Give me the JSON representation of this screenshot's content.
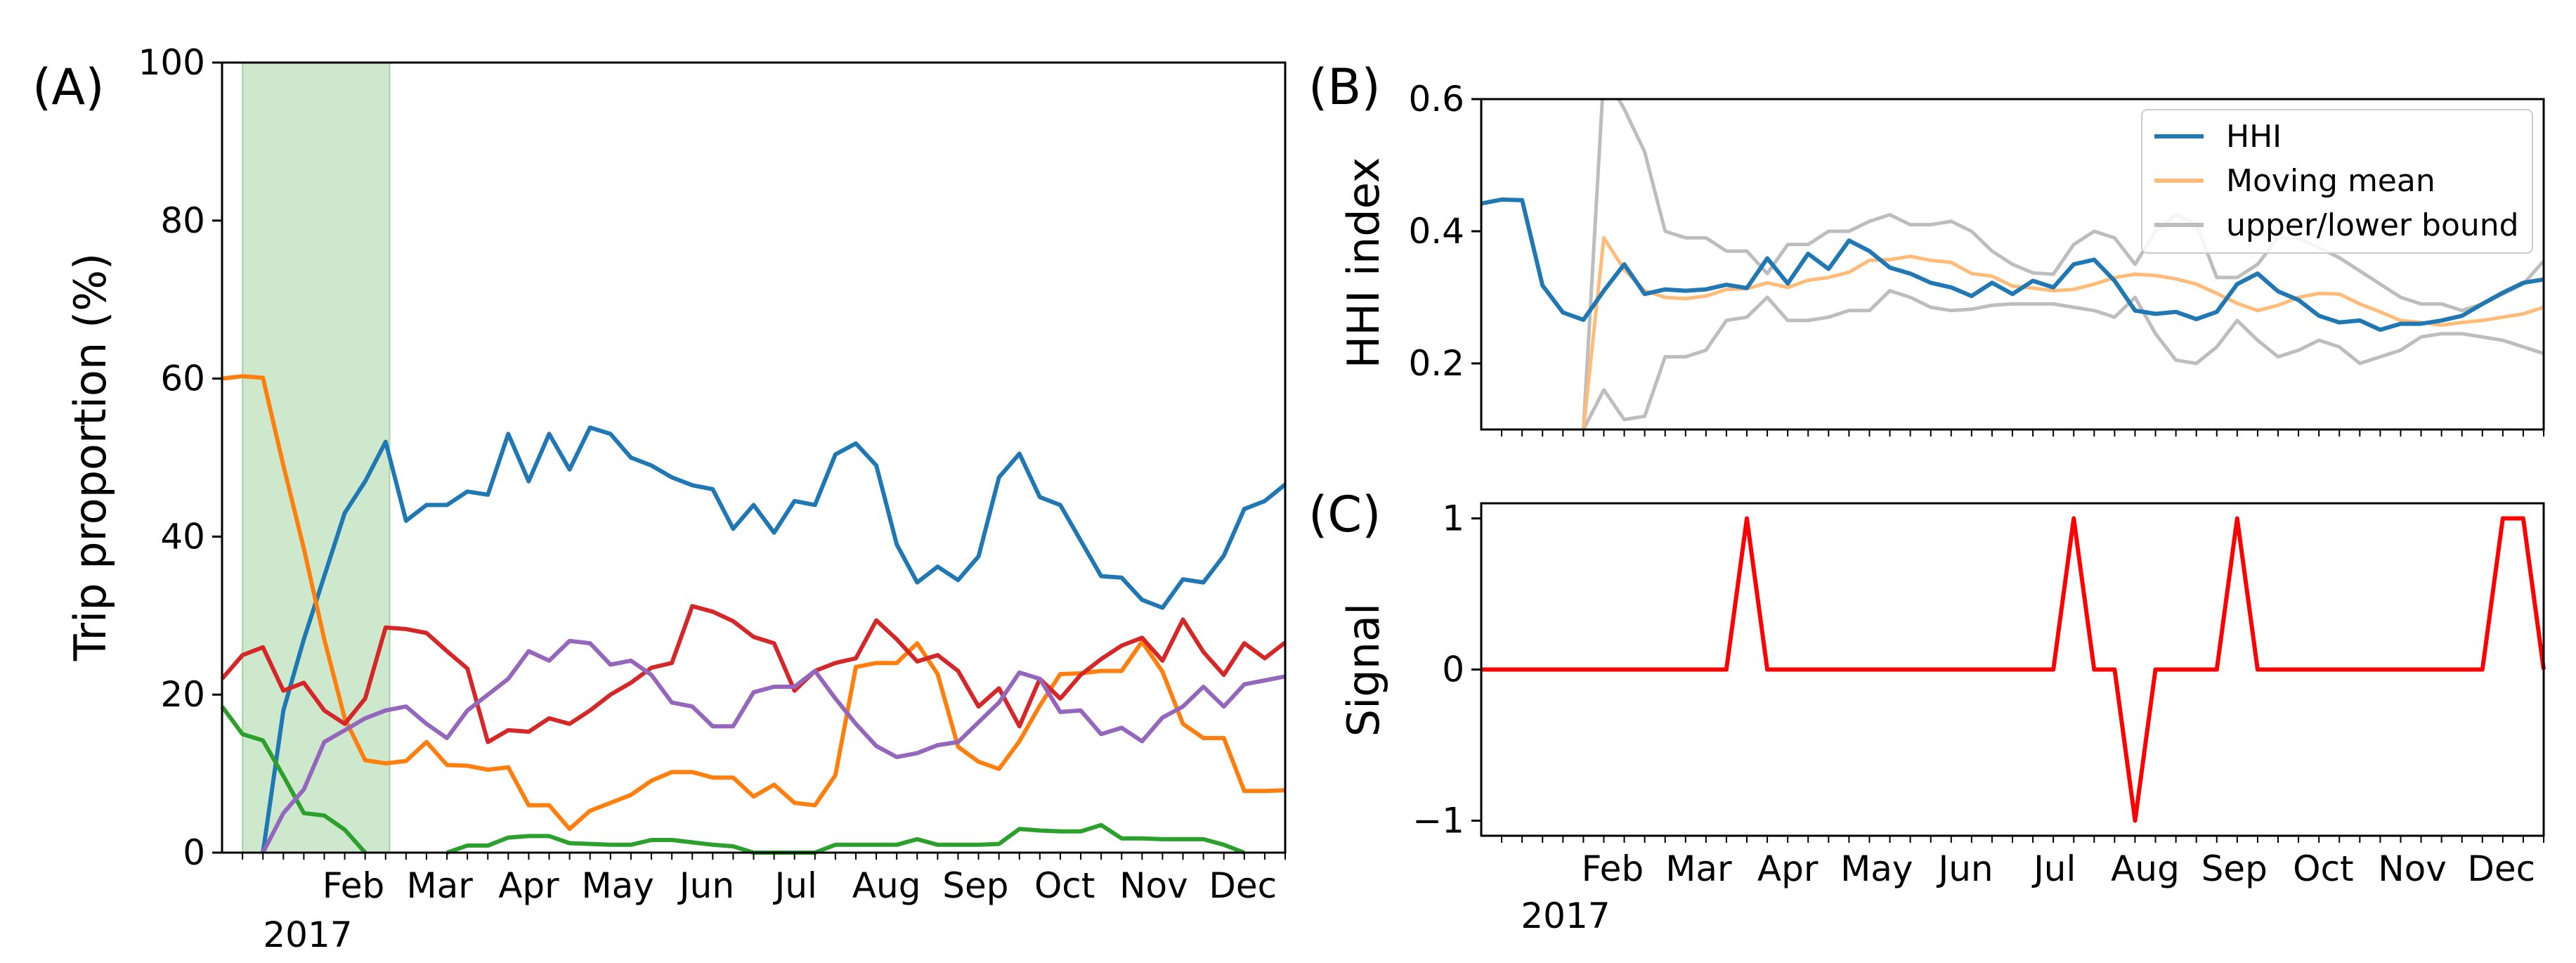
{
  "colors": {
    "blue": "#1f77b4",
    "orange": "#ff7f0e",
    "green": "#2ca02c",
    "red": "#d62728",
    "purple": "#9467bd",
    "moving_mean": "#ffbb78",
    "bounds": "#bdbdbd",
    "signal": "#ff0000",
    "highlight": "#2ca02c"
  },
  "month_labels": [
    "Feb",
    "Mar",
    "Apr",
    "May",
    "Jun",
    "Jul",
    "Aug",
    "Sep",
    "Oct",
    "Nov",
    "Dec"
  ],
  "year_label": "2017",
  "chart_data": [
    {
      "panel": "(A)",
      "type": "line",
      "ylabel": "Trip proportion (%)",
      "ylim": [
        0,
        100
      ],
      "yticks": [
        "0",
        "20",
        "40",
        "60",
        "80",
        "100"
      ],
      "x_axis": "weekly, 2017 (week index 0-52)",
      "xlim": [
        0,
        52
      ],
      "shaded_region_weeks": [
        1,
        8.2
      ],
      "series": [
        {
          "color": "blue",
          "values": [
            null,
            null,
            0,
            18,
            27,
            35,
            43,
            47,
            52,
            42,
            44,
            44,
            45.7,
            45.3,
            53,
            47,
            53,
            48.5,
            53.8,
            53,
            50,
            49,
            47.5,
            46.5,
            46,
            41,
            44,
            40.5,
            44.5,
            44,
            50.4,
            51.8,
            49,
            39,
            34.2,
            36.2,
            34.5,
            37.5,
            47.5,
            50.5,
            45,
            44,
            39.5,
            35,
            34.8,
            32,
            31,
            34.6,
            34.2,
            37.6,
            43.5,
            44.5,
            46.6
          ]
        },
        {
          "color": "orange",
          "values": [
            60,
            60.3,
            60.1,
            49,
            38.5,
            27,
            17,
            11.7,
            11.3,
            11.6,
            14,
            11.1,
            11,
            10.5,
            10.8,
            6,
            6,
            3,
            5.3,
            6.3,
            7.3,
            9.1,
            10.2,
            10.2,
            9.5,
            9.5,
            7.1,
            8.6,
            6.3,
            6,
            9.8,
            23.5,
            24,
            24,
            26.5,
            22.6,
            13.4,
            11.5,
            10.6,
            14.1,
            18.6,
            22.6,
            22.7,
            23,
            23,
            26.7,
            22.9,
            16.3,
            14.5,
            14.5,
            7.8,
            7.8,
            7.9
          ]
        },
        {
          "color": "green",
          "values": [
            18.5,
            15,
            14.2,
            9.7,
            5,
            4.7,
            2.9,
            0,
            null,
            null,
            null,
            0,
            0.9,
            0.9,
            1.9,
            2.1,
            2.1,
            1.2,
            1.1,
            1,
            1,
            1.6,
            1.6,
            1.3,
            1,
            0.8,
            0,
            0,
            0,
            0,
            1,
            1,
            1,
            1,
            1.7,
            1,
            1,
            1,
            1.1,
            3,
            2.8,
            2.7,
            2.7,
            3.5,
            1.8,
            1.8,
            1.7,
            1.7,
            1.7,
            1,
            0,
            null,
            null
          ]
        },
        {
          "color": "red",
          "values": [
            22,
            25,
            26,
            20.5,
            21.5,
            18,
            16.3,
            19.5,
            28.5,
            28.3,
            27.8,
            25.5,
            23.3,
            14,
            15.5,
            15.3,
            17,
            16.3,
            18,
            20,
            21.5,
            23.4,
            24,
            31.2,
            30.5,
            29.3,
            27.3,
            26.5,
            20.5,
            23,
            24,
            24.6,
            29.4,
            27,
            24.2,
            25,
            23,
            18.5,
            20.8,
            16,
            22,
            19.5,
            22.5,
            24.5,
            26.2,
            27.2,
            24.3,
            29.5,
            25.4,
            22.5,
            26.5,
            24.6,
            26.6
          ]
        },
        {
          "color": "purple",
          "values": [
            null,
            null,
            0,
            5,
            8,
            14,
            15.5,
            17,
            18,
            18.5,
            16.3,
            14.5,
            18,
            20,
            22,
            25.5,
            24.3,
            26.8,
            26.5,
            23.8,
            24.3,
            22.5,
            19,
            18.5,
            16,
            16,
            20.3,
            21,
            21,
            23,
            19.5,
            16.3,
            13.5,
            12.1,
            12.6,
            13.6,
            14,
            16.5,
            19,
            22.8,
            22,
            17.8,
            18,
            15,
            15.8,
            14.1,
            17.1,
            18.5,
            21,
            18.5,
            21.3,
            21.8,
            22.3
          ]
        }
      ]
    },
    {
      "panel": "(B)",
      "type": "line",
      "ylabel": "HHI index",
      "ylim": [
        0.1,
        0.6
      ],
      "yticks": [
        "0.2",
        "0.4",
        "0.6"
      ],
      "xlim": [
        0,
        52
      ],
      "legend_position": "top-right",
      "legend": [
        "HHI",
        "Moving mean",
        "upper/lower bound"
      ],
      "series": [
        {
          "name": "HHI",
          "color": "blue",
          "values": [
            0.442,
            0.448,
            0.447,
            0.318,
            0.277,
            0.266,
            0.31,
            0.35,
            0.305,
            0.312,
            0.31,
            0.312,
            0.319,
            0.314,
            0.359,
            0.321,
            0.366,
            0.343,
            0.386,
            0.37,
            0.345,
            0.336,
            0.322,
            0.315,
            0.302,
            0.322,
            0.305,
            0.325,
            0.315,
            0.35,
            0.357,
            0.325,
            0.28,
            0.275,
            0.278,
            0.267,
            0.278,
            0.32,
            0.336,
            0.309,
            0.296,
            0.272,
            0.262,
            0.265,
            0.251,
            0.26,
            0.26,
            0.265,
            0.272,
            0.29,
            0.307,
            0.322,
            0.327
          ]
        },
        {
          "name": "Moving mean",
          "color": "moving_mean",
          "values": [
            null,
            null,
            null,
            null,
            null,
            0.1,
            0.39,
            0.342,
            0.31,
            0.3,
            0.298,
            0.302,
            0.312,
            0.313,
            0.322,
            0.315,
            0.326,
            0.33,
            0.338,
            0.356,
            0.357,
            0.362,
            0.356,
            0.353,
            0.336,
            0.332,
            0.317,
            0.314,
            0.31,
            0.312,
            0.32,
            0.33,
            0.335,
            0.333,
            0.328,
            0.32,
            0.306,
            0.291,
            0.28,
            0.288,
            0.3,
            0.306,
            0.305,
            0.29,
            0.278,
            0.265,
            0.262,
            0.258,
            0.262,
            0.265,
            0.27,
            0.275,
            0.285
          ]
        },
        {
          "name": "upper bound",
          "color": "bounds",
          "values": [
            null,
            null,
            null,
            null,
            null,
            0.1,
            0.64,
            0.585,
            0.52,
            0.4,
            0.39,
            0.39,
            0.37,
            0.37,
            0.336,
            0.38,
            0.38,
            0.4,
            0.4,
            0.415,
            0.425,
            0.41,
            0.41,
            0.415,
            0.4,
            0.37,
            0.35,
            0.337,
            0.335,
            0.38,
            0.4,
            0.39,
            0.35,
            0.4,
            0.425,
            0.41,
            0.33,
            0.33,
            0.35,
            0.39,
            0.39,
            0.375,
            0.36,
            0.34,
            0.32,
            0.3,
            0.29,
            0.29,
            0.28,
            0.29,
            0.305,
            0.32,
            0.355
          ]
        },
        {
          "name": "lower bound",
          "color": "bounds",
          "values": [
            null,
            null,
            null,
            null,
            null,
            0.1,
            0.16,
            0.115,
            0.12,
            0.21,
            0.21,
            0.22,
            0.265,
            0.27,
            0.3,
            0.265,
            0.265,
            0.27,
            0.28,
            0.28,
            0.31,
            0.3,
            0.285,
            0.28,
            0.282,
            0.288,
            0.29,
            0.29,
            0.29,
            0.285,
            0.28,
            0.27,
            0.3,
            0.245,
            0.205,
            0.2,
            0.225,
            0.265,
            0.235,
            0.21,
            0.22,
            0.235,
            0.225,
            0.2,
            0.21,
            0.22,
            0.24,
            0.245,
            0.245,
            0.24,
            0.235,
            0.225,
            0.215
          ]
        }
      ]
    },
    {
      "panel": "(C)",
      "type": "line",
      "ylabel": "Signal",
      "ylim": [
        -1.1,
        1.1
      ],
      "yticks": [
        "−1",
        "0",
        "1"
      ],
      "xlim": [
        0,
        52
      ],
      "series": [
        {
          "color": "signal",
          "values": [
            0,
            0,
            0,
            0,
            0,
            0,
            0,
            0,
            0,
            0,
            0,
            0,
            0,
            1,
            0,
            0,
            0,
            0,
            0,
            0,
            0,
            0,
            0,
            0,
            0,
            0,
            0,
            0,
            0,
            1,
            0,
            0,
            -1,
            0,
            0,
            0,
            0,
            1,
            0,
            0,
            0,
            0,
            0,
            0,
            0,
            0,
            0,
            0,
            0,
            0,
            1,
            1,
            0
          ]
        }
      ]
    }
  ]
}
